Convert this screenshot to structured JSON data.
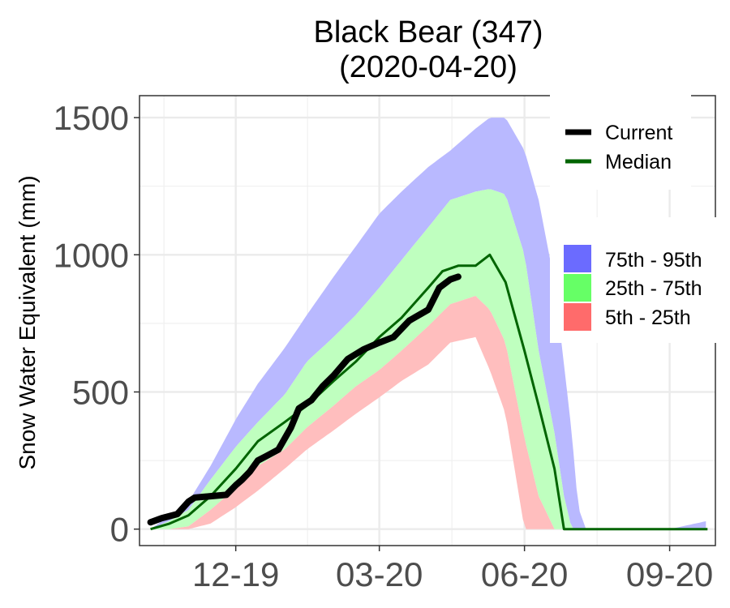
{
  "chart_data": {
    "type": "area",
    "title": "Black Bear (347)",
    "subtitle": "(2020-04-20)",
    "xlabel": "",
    "ylabel": "Snow Water Equivalent (mm)",
    "x_axis_type": "date",
    "xlim": [
      "2019-10-01",
      "2020-09-30"
    ],
    "ylim": [
      -60,
      1580
    ],
    "x_tick_dates": [
      "2019-12-01",
      "2020-03-01",
      "2020-06-01",
      "2020-09-01"
    ],
    "x_tick_labels": [
      "12-19",
      "03-20",
      "06-20",
      "09-20"
    ],
    "y_ticks": [
      0,
      500,
      1000,
      1500
    ],
    "y_tick_labels": [
      "0",
      "500",
      "1000",
      "1500"
    ],
    "grid": true,
    "legend": [
      {
        "label": "Current",
        "kind": "line",
        "color": "#000000"
      },
      {
        "label": "Median",
        "kind": "line",
        "color": "#006400"
      },
      {
        "label": "75th - 95th",
        "kind": "fill",
        "color": "#6b6bff"
      },
      {
        "label": "25th - 75th",
        "kind": "fill",
        "color": "#66ff66"
      },
      {
        "label": "5th - 25th",
        "kind": "fill",
        "color": "#ff6b6b"
      }
    ],
    "colors": {
      "band_75_95": "#b9b9ff",
      "band_25_75": "#bfffbf",
      "band_5_25": "#ffbebe",
      "median": "#006400",
      "current": "#000000"
    },
    "series": [
      {
        "name": "95th",
        "x": [
          "2019-10-08",
          "2019-10-20",
          "2019-11-01",
          "2019-11-15",
          "2019-12-01",
          "2019-12-15",
          "2020-01-01",
          "2020-01-15",
          "2020-02-01",
          "2020-02-15",
          "2020-03-01",
          "2020-03-15",
          "2020-04-01",
          "2020-04-15",
          "2020-05-01",
          "2020-05-10",
          "2020-05-20",
          "2020-06-01",
          "2020-06-10",
          "2020-06-20",
          "2020-07-01",
          "2020-07-05",
          "2020-07-10",
          "2020-07-15",
          "2020-08-01",
          "2020-09-01",
          "2020-09-25"
        ],
        "y": [
          0,
          50,
          100,
          230,
          400,
          530,
          660,
          780,
          920,
          1030,
          1150,
          1230,
          1320,
          1380,
          1460,
          1500,
          1500,
          1380,
          1200,
          900,
          350,
          80,
          0,
          0,
          0,
          0,
          30
        ]
      },
      {
        "name": "75th",
        "x": [
          "2019-10-08",
          "2019-10-20",
          "2019-11-01",
          "2019-11-15",
          "2019-12-01",
          "2019-12-15",
          "2020-01-01",
          "2020-01-15",
          "2020-02-01",
          "2020-02-15",
          "2020-03-01",
          "2020-03-15",
          "2020-04-01",
          "2020-04-15",
          "2020-05-01",
          "2020-05-10",
          "2020-05-20",
          "2020-06-01",
          "2020-06-10",
          "2020-06-20",
          "2020-06-26",
          "2020-07-01",
          "2020-07-10",
          "2020-08-01",
          "2020-09-01",
          "2020-09-25"
        ],
        "y": [
          0,
          30,
          70,
          180,
          300,
          390,
          490,
          610,
          700,
          780,
          880,
          980,
          1100,
          1200,
          1230,
          1240,
          1220,
          1000,
          650,
          350,
          120,
          0,
          0,
          0,
          0,
          0
        ]
      },
      {
        "name": "Median",
        "x": [
          "2019-10-08",
          "2019-10-20",
          "2019-11-01",
          "2019-11-15",
          "2019-12-01",
          "2019-12-15",
          "2020-01-01",
          "2020-01-15",
          "2020-02-01",
          "2020-02-15",
          "2020-03-01",
          "2020-03-15",
          "2020-04-01",
          "2020-04-10",
          "2020-04-20",
          "2020-05-01",
          "2020-05-10",
          "2020-05-20",
          "2020-06-01",
          "2020-06-10",
          "2020-06-20",
          "2020-06-26",
          "2020-07-01",
          "2020-08-01",
          "2020-09-01",
          "2020-09-25"
        ],
        "y": [
          0,
          20,
          50,
          120,
          220,
          320,
          390,
          450,
          540,
          610,
          700,
          770,
          880,
          940,
          960,
          960,
          1000,
          900,
          650,
          450,
          220,
          0,
          0,
          0,
          0,
          0
        ]
      },
      {
        "name": "25th",
        "x": [
          "2019-10-20",
          "2019-11-01",
          "2019-11-15",
          "2019-12-01",
          "2019-12-15",
          "2020-01-01",
          "2020-01-15",
          "2020-02-01",
          "2020-02-15",
          "2020-03-01",
          "2020-03-15",
          "2020-04-01",
          "2020-04-15",
          "2020-05-01",
          "2020-05-10",
          "2020-05-20",
          "2020-06-01",
          "2020-06-10",
          "2020-06-20",
          "2020-06-22",
          "2020-07-01",
          "2020-08-01",
          "2020-09-01",
          "2020-09-25"
        ],
        "y": [
          0,
          10,
          70,
          150,
          230,
          290,
          370,
          450,
          520,
          580,
          650,
          740,
          820,
          850,
          800,
          680,
          330,
          120,
          0,
          0,
          0,
          0,
          0,
          0
        ]
      },
      {
        "name": "5th",
        "x": [
          "2019-10-20",
          "2019-11-01",
          "2019-11-15",
          "2019-12-01",
          "2019-12-15",
          "2020-01-01",
          "2020-01-15",
          "2020-02-01",
          "2020-02-15",
          "2020-03-01",
          "2020-03-15",
          "2020-04-01",
          "2020-04-15",
          "2020-05-01",
          "2020-05-10",
          "2020-05-20",
          "2020-06-01",
          "2020-06-10",
          "2020-06-20",
          "2020-07-01",
          "2020-08-01",
          "2020-09-01",
          "2020-09-25"
        ],
        "y": [
          0,
          0,
          20,
          80,
          140,
          220,
          290,
          360,
          420,
          480,
          540,
          600,
          680,
          700,
          580,
          420,
          0,
          0,
          0,
          0,
          0,
          0,
          0
        ]
      },
      {
        "name": "Current",
        "x": [
          "2019-10-08",
          "2019-10-15",
          "2019-10-25",
          "2019-11-01",
          "2019-11-05",
          "2019-11-15",
          "2019-11-25",
          "2019-12-01",
          "2019-12-05",
          "2019-12-10",
          "2019-12-15",
          "2019-12-20",
          "2019-12-28",
          "2020-01-05",
          "2020-01-10",
          "2020-01-18",
          "2020-01-25",
          "2020-02-01",
          "2020-02-10",
          "2020-02-20",
          "2020-03-01",
          "2020-03-10",
          "2020-03-20",
          "2020-04-01",
          "2020-04-08",
          "2020-04-15",
          "2020-04-20"
        ],
        "y": [
          25,
          40,
          55,
          100,
          115,
          120,
          125,
          160,
          180,
          210,
          250,
          265,
          290,
          370,
          440,
          470,
          520,
          560,
          620,
          655,
          680,
          700,
          760,
          800,
          880,
          910,
          920
        ]
      }
    ]
  }
}
